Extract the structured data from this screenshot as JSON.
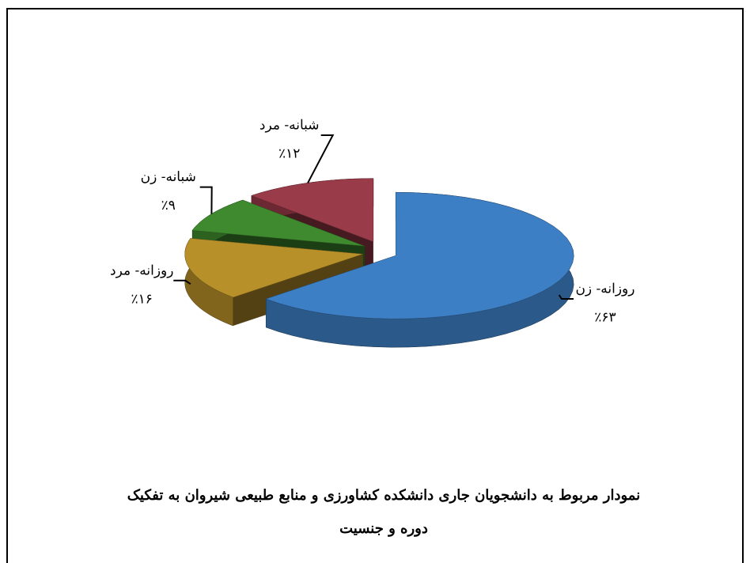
{
  "chart_data": {
    "type": "pie3d",
    "title": "نمودار مربوط به دانشجویان جاری دانشکده کشاورزی و منابع طبیعی شیروان به تفکیک دوره و جنسیت",
    "categories": [
      "روزانه- زن",
      "روزانه- مرد",
      "شبانه- زن",
      "شبانه- مرد"
    ],
    "values": [
      63,
      16,
      9,
      12
    ],
    "value_labels": [
      "٪۶۳",
      "٪۱۶",
      "٪۹",
      "٪۱۲"
    ],
    "colors": [
      "#3d7fc4",
      "#b8902a",
      "#3f8a2e",
      "#9a3b4a"
    ]
  }
}
